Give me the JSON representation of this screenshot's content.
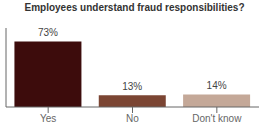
{
  "chart_data": {
    "type": "bar",
    "title": "Employees understand fraud responsibilities?",
    "categories": [
      "Yes",
      "No",
      "Don't know"
    ],
    "values": [
      73,
      13,
      14
    ],
    "value_labels": [
      "73%",
      "13%",
      "14%"
    ],
    "colors": [
      "#3d0c0c",
      "#7b4533",
      "#c4a898"
    ],
    "ylim": [
      0,
      88
    ],
    "data_labels": true,
    "tick_labels": "x",
    "grid": false
  }
}
